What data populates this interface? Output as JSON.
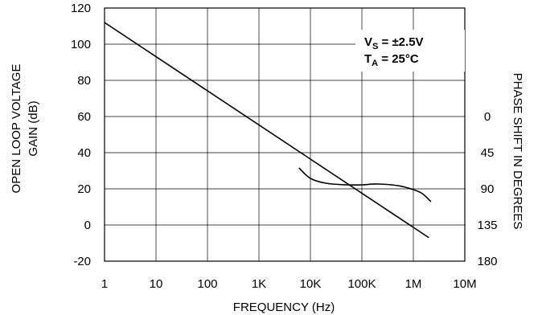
{
  "chart_data": {
    "type": "line",
    "xscale": "log",
    "xlim": [
      1,
      10000000
    ],
    "ylim": [
      -20,
      120
    ],
    "y2lim": [
      180,
      0
    ],
    "x_ticks": [
      1,
      10,
      100,
      1000,
      10000,
      100000,
      1000000,
      10000000
    ],
    "x_tick_labels": [
      "1",
      "10",
      "100",
      "1K",
      "10K",
      "100K",
      "1M",
      "10M"
    ],
    "y_ticks": [
      -20,
      0,
      20,
      40,
      60,
      80,
      100,
      120
    ],
    "y_tick_labels": [
      "-20",
      "0",
      "20",
      "40",
      "60",
      "80",
      "100",
      "120"
    ],
    "y2_ticks": [
      0,
      45,
      90,
      135,
      180
    ],
    "y2_tick_labels": [
      "0",
      "45",
      "90",
      "135",
      "180"
    ],
    "xlabel": "FREQUENCY (Hz)",
    "ylabel_line1": "OPEN LOOP VOLTAGE",
    "ylabel_line2": "GAIN (dB)",
    "y2label": "PHASE SHIFT IN DEGREES",
    "grid": true,
    "annotation": {
      "vs_main": "V",
      "vs_sub": "S",
      "vs_rest": " = ±2.5V",
      "ta_main": "T",
      "ta_sub": "A",
      "ta_rest": " = 25°C"
    },
    "series": [
      {
        "axis": "left",
        "x": [
          1,
          2000000
        ],
        "y": [
          112,
          -7
        ]
      },
      {
        "axis": "right",
        "x": [
          6000,
          10000,
          20000,
          50000,
          100000,
          200000,
          500000,
          1000000,
          1500000,
          2200000
        ],
        "y": [
          64,
          77,
          83,
          85,
          85,
          84,
          86,
          91,
          96,
          106
        ]
      }
    ]
  }
}
